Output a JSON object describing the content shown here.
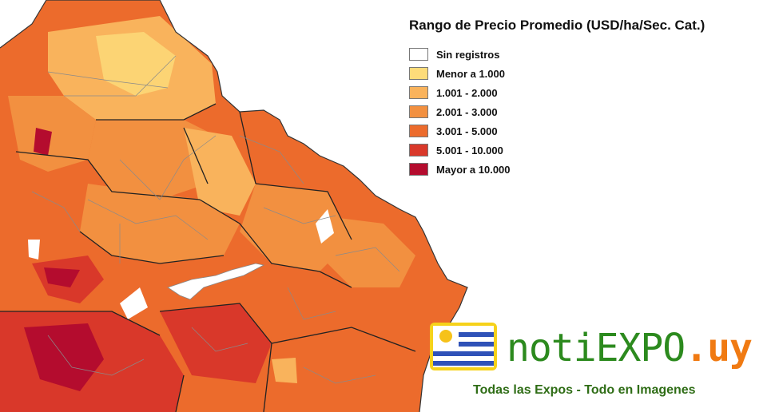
{
  "legend": {
    "title": "Rango de Precio Promedio (USD/ha/Sec. Cat.)",
    "items": [
      {
        "label": "Sin registros",
        "color": "#ffffff"
      },
      {
        "label": "Menor a 1.000",
        "color": "#fddc7a"
      },
      {
        "label": "1.001 - 2.000",
        "color": "#f9b35c"
      },
      {
        "label": "2.001 - 3.000",
        "color": "#f29040"
      },
      {
        "label": "3.001 - 5.000",
        "color": "#ec6b2c"
      },
      {
        "label": "5.001 - 10.000",
        "color": "#d9382a"
      },
      {
        "label": "Mayor a 10.000",
        "color": "#b40c2e"
      }
    ]
  },
  "brand": {
    "name_part1": "noti",
    "name_part2": "EXPO",
    "name_part3": ".uy",
    "tagline": "Todas las Expos - Todo en Imagenes",
    "colors": {
      "green": "#2c8a1e",
      "orange": "#f07a12"
    }
  },
  "map": {
    "region": "Uruguay"
  }
}
